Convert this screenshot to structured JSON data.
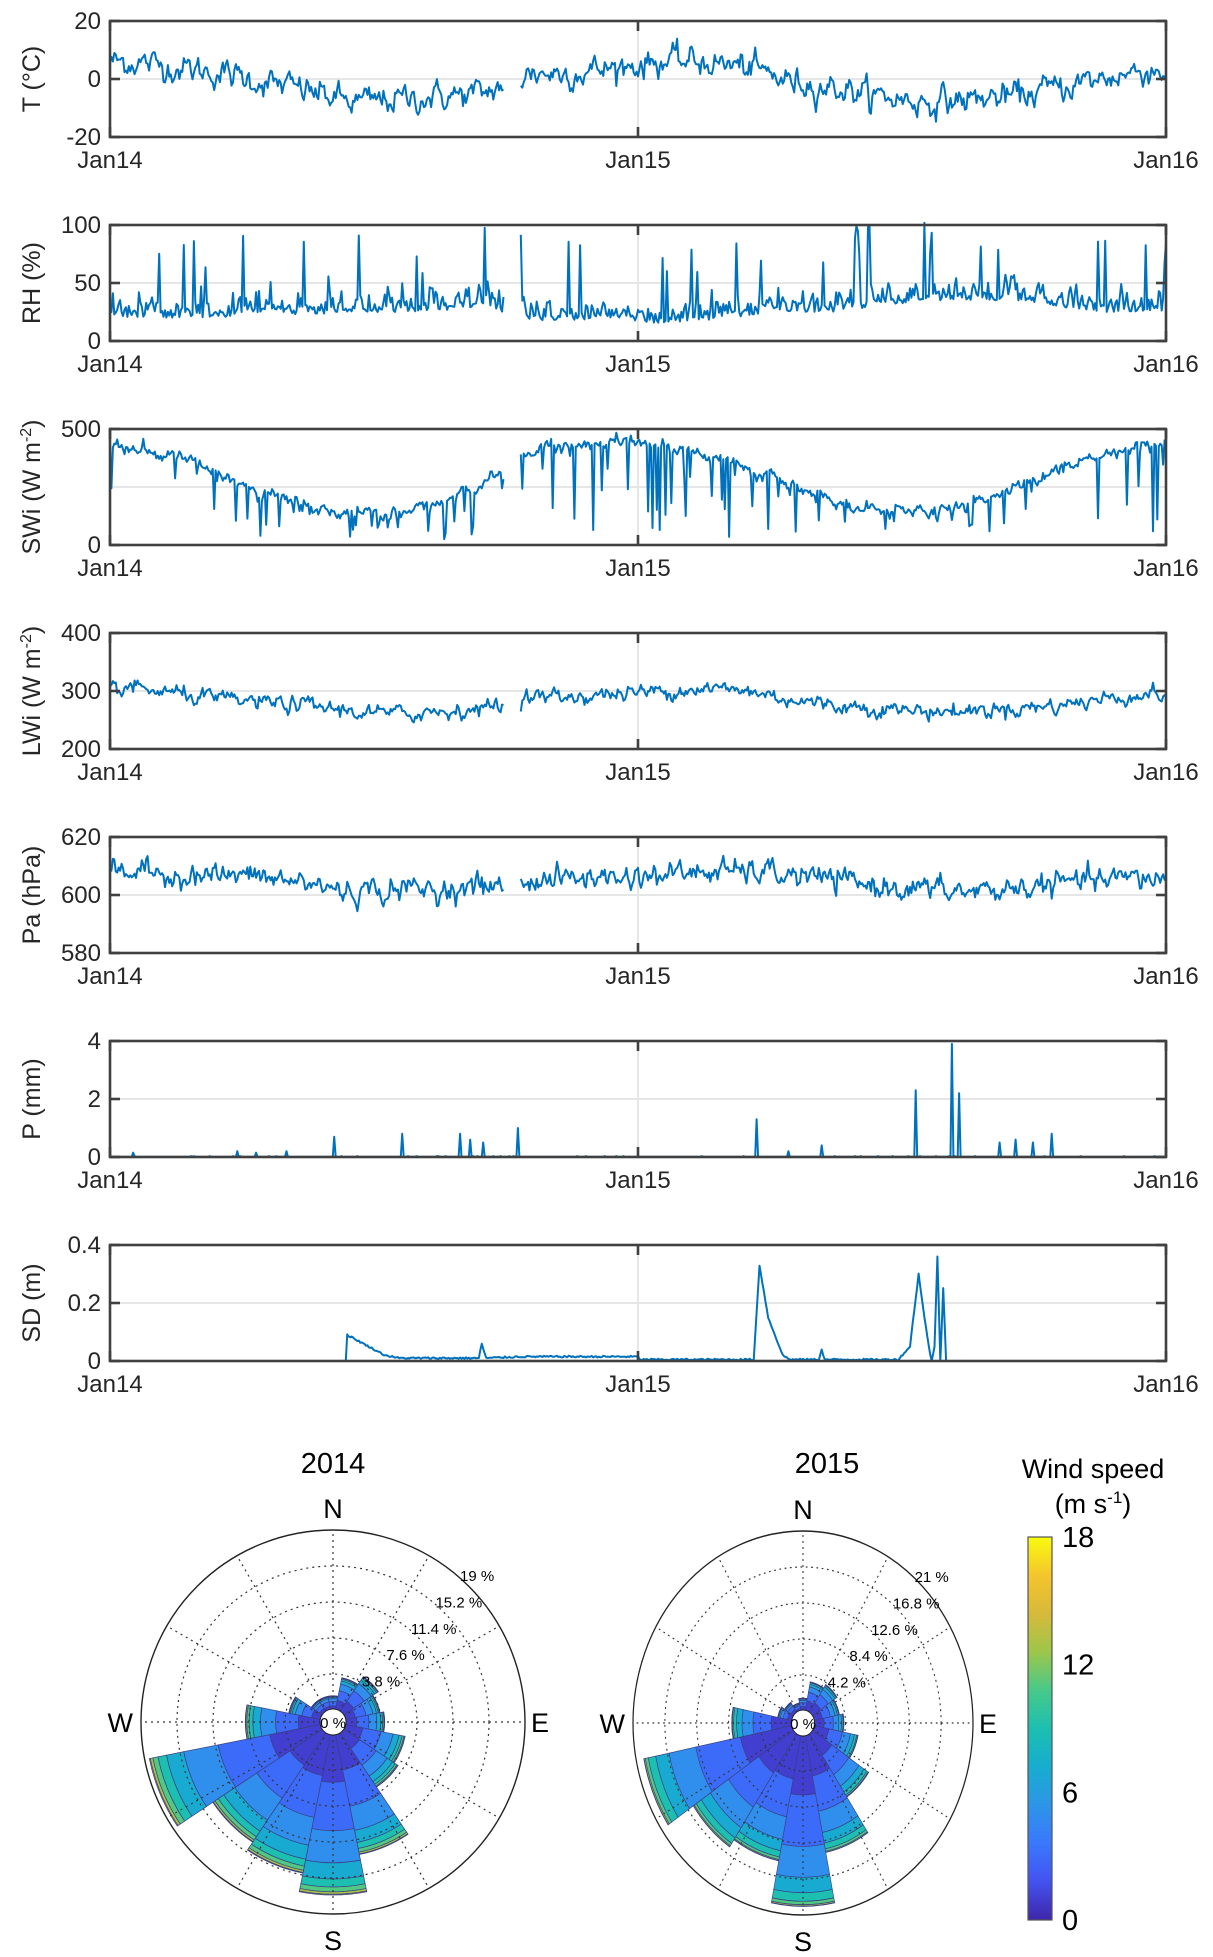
{
  "line_color": "#0072BD",
  "x_axis": {
    "tick_labels": [
      "Jan14",
      "Jan15",
      "Jan16"
    ],
    "tick_days": [
      0,
      365,
      730
    ],
    "days_total": 730,
    "data_gap_days": [
      273,
      283
    ]
  },
  "chart_data": [
    {
      "type": "line",
      "ylabel": "T (°C)",
      "ylabel_sup": "",
      "ylabel_end": "",
      "ylim": [
        -20,
        20
      ],
      "yticks": [
        -20,
        0,
        20
      ],
      "style": "normal",
      "noise": 3.5,
      "gap": true,
      "monthly_mean": [
        6,
        4,
        2,
        -1,
        -4,
        -8,
        -7,
        -6,
        -5,
        2,
        2,
        4,
        6,
        6,
        4,
        -1,
        -3,
        -6,
        -8,
        -7,
        -6,
        -3,
        0,
        3
      ]
    },
    {
      "type": "line",
      "ylabel": "RH (%)",
      "ylabel_sup": "",
      "ylabel_end": "",
      "ylim": [
        0,
        100
      ],
      "yticks": [
        0,
        50,
        100
      ],
      "style": "spiky_up",
      "noise": 12,
      "gap": true,
      "monthly_mean": [
        20,
        20,
        20,
        25,
        22,
        25,
        25,
        25,
        30,
        18,
        18,
        20,
        15,
        18,
        22,
        25,
        25,
        30,
        35,
        35,
        35,
        30,
        25,
        25
      ]
    },
    {
      "type": "line",
      "ylabel": "SWi (W m",
      "ylabel_sup": "-2",
      "ylabel_end": ")",
      "ylim": [
        0,
        500
      ],
      "yticks": [
        0,
        500
      ],
      "style": "spiky_down",
      "noise": 25,
      "gap": true,
      "monthly_mean": [
        420,
        380,
        300,
        220,
        170,
        130,
        140,
        180,
        260,
        400,
        430,
        440,
        430,
        400,
        330,
        250,
        190,
        150,
        140,
        170,
        240,
        320,
        380,
        420
      ]
    },
    {
      "type": "line",
      "ylabel": "LWi (W m",
      "ylabel_sup": "-2",
      "ylabel_end": ")",
      "ylim": [
        200,
        400
      ],
      "yticks": [
        200,
        300,
        400
      ],
      "style": "normal",
      "noise": 10,
      "gap": true,
      "monthly_mean": [
        305,
        295,
        285,
        280,
        275,
        265,
        260,
        265,
        270,
        290,
        290,
        295,
        300,
        305,
        300,
        285,
        275,
        270,
        265,
        265,
        270,
        275,
        285,
        295
      ]
    },
    {
      "type": "line",
      "ylabel": "Pa (hPa)",
      "ylabel_sup": "",
      "ylabel_end": "",
      "ylim": [
        580,
        620
      ],
      "yticks": [
        580,
        600,
        620
      ],
      "style": "normal",
      "noise": 3,
      "gap": true,
      "monthly_mean": [
        608,
        607,
        607,
        606,
        604,
        601,
        602,
        602,
        603,
        605,
        606,
        606,
        607,
        608,
        608,
        607,
        605,
        603,
        602,
        601,
        602,
        604,
        605,
        606
      ]
    },
    {
      "type": "line",
      "ylabel": "P (mm)",
      "ylabel_sup": "",
      "ylabel_end": "",
      "ylim": [
        0,
        4
      ],
      "yticks": [
        0,
        2,
        4
      ],
      "style": "spikes",
      "spikes": [
        [
          16,
          0.15
        ],
        [
          88,
          0.2
        ],
        [
          101,
          0.15
        ],
        [
          122,
          0.2
        ],
        [
          155,
          0.7
        ],
        [
          202,
          0.8
        ],
        [
          242,
          0.8
        ],
        [
          249,
          0.6
        ],
        [
          258,
          0.5
        ],
        [
          282,
          1.0
        ],
        [
          447,
          1.3
        ],
        [
          469,
          0.2
        ],
        [
          492,
          0.4
        ],
        [
          557,
          2.3
        ],
        [
          582,
          3.9
        ],
        [
          587,
          2.2
        ],
        [
          615,
          0.5
        ],
        [
          626,
          0.6
        ],
        [
          638,
          0.5
        ],
        [
          651,
          0.8
        ]
      ]
    },
    {
      "type": "line",
      "ylabel": "SD (m)",
      "ylabel_sup": "",
      "ylabel_end": "",
      "ylim": [
        0,
        0.4
      ],
      "yticks": [
        0,
        0.2,
        0.4
      ],
      "style": "piecewise",
      "points": [
        [
          0,
          0
        ],
        [
          163,
          0
        ],
        [
          164,
          0.09
        ],
        [
          175,
          0.06
        ],
        [
          190,
          0.02
        ],
        [
          200,
          0.01
        ],
        [
          255,
          0.01
        ],
        [
          257,
          0.06
        ],
        [
          260,
          0.01
        ],
        [
          283,
          0.015
        ],
        [
          365,
          0.015
        ],
        [
          366,
          0.005
        ],
        [
          445,
          0.005
        ],
        [
          449,
          0.33
        ],
        [
          455,
          0.15
        ],
        [
          465,
          0.02
        ],
        [
          470,
          0.005
        ],
        [
          490,
          0.005
        ],
        [
          492,
          0.04
        ],
        [
          494,
          0.005
        ],
        [
          545,
          0.005
        ],
        [
          553,
          0.05
        ],
        [
          559,
          0.3
        ],
        [
          563,
          0.15
        ],
        [
          566,
          0.05
        ],
        [
          568,
          0
        ],
        [
          570,
          0.05
        ],
        [
          572,
          0.36
        ],
        [
          574,
          0
        ],
        [
          576,
          0.25
        ],
        [
          578,
          0
        ],
        [
          730,
          0
        ]
      ]
    },
    {
      "type": "windrose",
      "title": "2014",
      "ring_step": 3.8,
      "ring_labels": [
        "3.8 %",
        "7.6 %",
        "11.4 %",
        "15.2 %",
        "19 %"
      ],
      "max": 19,
      "center_label": "0 %",
      "compass": [
        "N",
        "E",
        "S",
        "W"
      ],
      "directions": [
        "N",
        "NNE",
        "NE",
        "ENE",
        "E",
        "ESE",
        "SE",
        "SSE",
        "S",
        "SSW",
        "SW",
        "WSW",
        "W",
        "WNW",
        "NW",
        "NNW"
      ],
      "frequency_pct": [
        1.5,
        3.5,
        4.5,
        3.8,
        4.2,
        6.5,
        7,
        13,
        17,
        15,
        14,
        18.5,
        8,
        3.5,
        1.5,
        1.5
      ],
      "speed_bin_fraction": [
        0.3,
        0.3,
        0.2,
        0.1,
        0.05,
        0.03,
        0.015,
        0.005
      ]
    },
    {
      "type": "windrose",
      "title": "2015",
      "ring_step": 4.2,
      "ring_labels": [
        "4.2 %",
        "8.4 %",
        "12.6 %",
        "16.8 %",
        "21 %"
      ],
      "max": 21,
      "center_label": "0 %",
      "compass": [
        "N",
        "E",
        "S",
        "W"
      ],
      "directions": [
        "N",
        "NNE",
        "NE",
        "ENE",
        "E",
        "ESE",
        "SE",
        "SSE",
        "S",
        "SSW",
        "SW",
        "WSW",
        "W",
        "WNW",
        "NW",
        "NNW"
      ],
      "frequency_pct": [
        1.5,
        3.5,
        4,
        3.5,
        4,
        6,
        9,
        14,
        20,
        15,
        16,
        20,
        8,
        2,
        1.5,
        1
      ],
      "speed_bin_fraction": [
        0.35,
        0.3,
        0.18,
        0.09,
        0.05,
        0.02,
        0.008,
        0.002
      ]
    }
  ],
  "colorbar": {
    "title": "Wind speed",
    "unit": "(m s",
    "unit_sup": "-1",
    "unit_end": ")",
    "range": [
      0,
      18
    ],
    "ticks": [
      0,
      6,
      12,
      18
    ],
    "speed_bin_edges": [
      0,
      2,
      4,
      6,
      8,
      10,
      12,
      14,
      18
    ],
    "colormap": [
      "#3e26a8",
      "#4352f0",
      "#3a78fd",
      "#2d95e8",
      "#17adcf",
      "#1cbfb0",
      "#48c98a",
      "#9dc64a",
      "#d7b93a",
      "#f5c52c",
      "#f9fb0e"
    ]
  }
}
